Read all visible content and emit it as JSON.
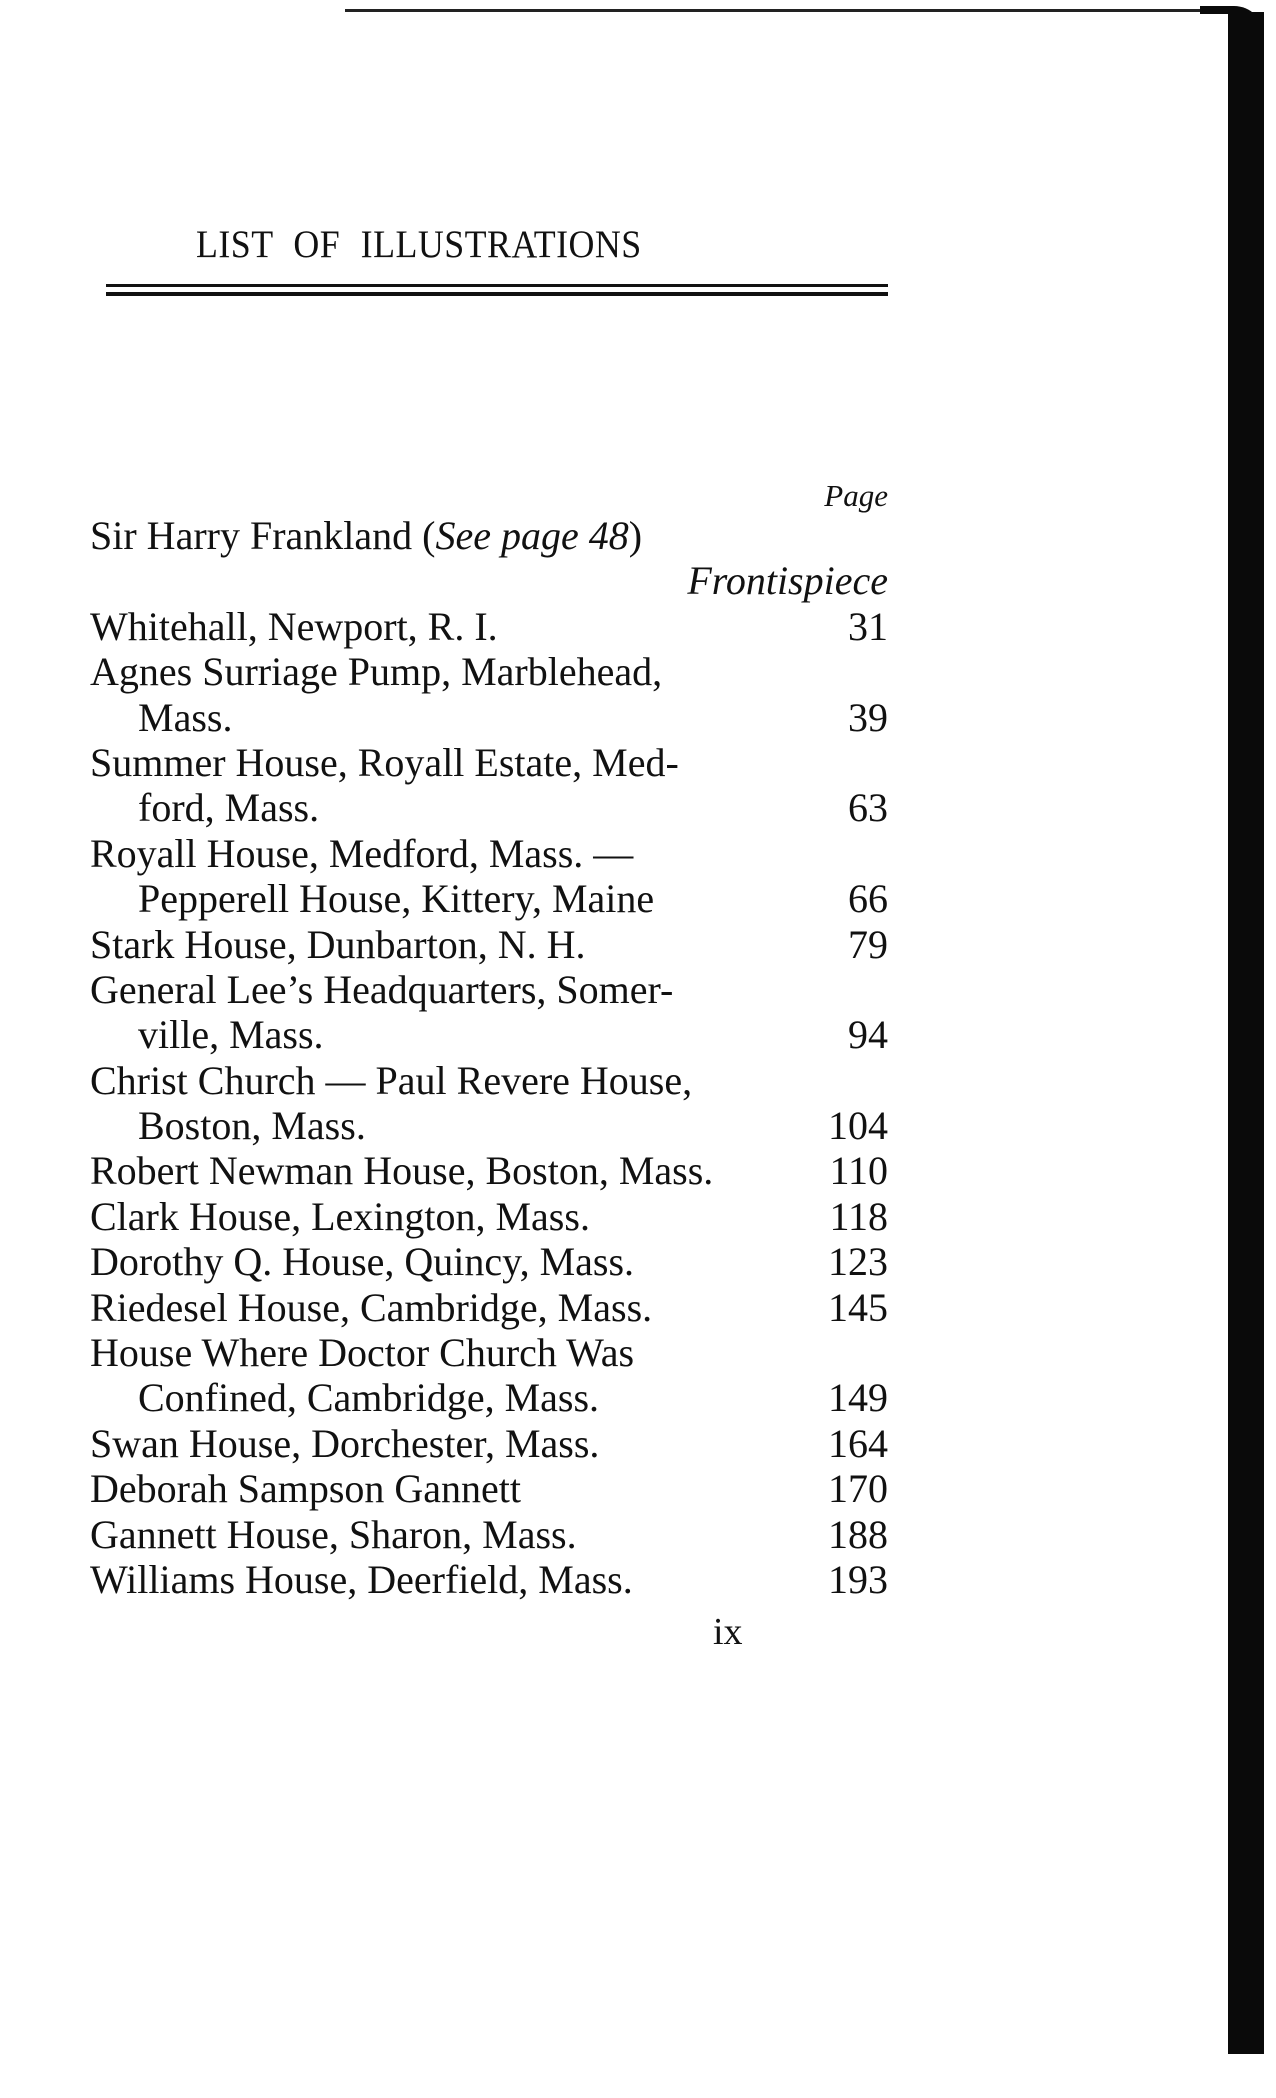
{
  "title": "LIST OF ILLUSTRATIONS",
  "page_heading": "Page",
  "entries": [
    {
      "lines": [
        "Sir Harry Frankland"
      ],
      "note_open": " (",
      "note_italic": "See page 48",
      "note_close": ")",
      "page": "Frontispiece"
    },
    {
      "lines": [
        "Whitehall, Newport, R. I."
      ],
      "page": "31"
    },
    {
      "lines": [
        "Agnes Surriage Pump, Marblehead,",
        "Mass."
      ],
      "page": "39"
    },
    {
      "lines": [
        "Summer House, Royall Estate, Med-",
        "ford, Mass."
      ],
      "page": "63"
    },
    {
      "lines": [
        "Royall House, Medford, Mass. —",
        "Pepperell House, Kittery, Maine"
      ],
      "page": "66"
    },
    {
      "lines": [
        "Stark House, Dunbarton, N. H."
      ],
      "page": "79"
    },
    {
      "lines": [
        "General Lee’s Headquarters, Somer-",
        "ville, Mass."
      ],
      "page": "94"
    },
    {
      "lines": [
        "Christ Church — Paul Revere House,",
        "Boston, Mass."
      ],
      "page": "104"
    },
    {
      "lines": [
        "Robert Newman House, Boston, Mass."
      ],
      "page": "110"
    },
    {
      "lines": [
        "Clark House, Lexington, Mass."
      ],
      "page": "118"
    },
    {
      "lines": [
        "Dorothy Q. House, Quincy, Mass."
      ],
      "page": "123"
    },
    {
      "lines": [
        "Riedesel House, Cambridge, Mass."
      ],
      "page": "145"
    },
    {
      "lines": [
        "House Where Doctor Church Was",
        "Confined, Cambridge, Mass."
      ],
      "page": "149"
    },
    {
      "lines": [
        "Swan House, Dorchester, Mass."
      ],
      "page": "164"
    },
    {
      "lines": [
        "Deborah Sampson Gannett"
      ],
      "page": "170"
    },
    {
      "lines": [
        "Gannett House, Sharon, Mass."
      ],
      "page": "188"
    },
    {
      "lines": [
        "Williams House, Deerfield, Mass."
      ],
      "page": "193"
    }
  ],
  "folio": "ix"
}
